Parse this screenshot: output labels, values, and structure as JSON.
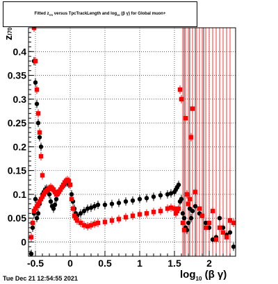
{
  "title": {
    "pre": "Fitted",
    "z_main": "z",
    "z_sub": "l70",
    "mid": "versus TpcTrackLength and log",
    "log_sub": "10",
    "post": "(β γ) for Global muon+"
  },
  "axes": {
    "ylabel_main": "z",
    "ylabel_sub": "l70",
    "xlabel_main": "log",
    "xlabel_sub": "10",
    "xlabel_post": "(β γ)"
  },
  "timestamp": "Tue Dec 21 12:54:55 2021",
  "chart_data": {
    "type": "scatter",
    "xlim": [
      -0.6,
      2.38
    ],
    "ylim": [
      -0.03,
      0.45
    ],
    "grid": true,
    "x_ticks": [
      -0.5,
      0,
      0.5,
      1,
      1.5,
      2
    ],
    "x_tick_labels": [
      "-0.5",
      "0",
      "0.5",
      "1",
      "1.5",
      "2"
    ],
    "y_ticks": [
      0,
      0.05,
      0.1,
      0.15,
      0.2,
      0.25,
      0.3,
      0.35,
      0.4
    ],
    "y_tick_labels": [
      "0",
      "0.05",
      "0.1",
      "0.15",
      "0.2",
      "0.25",
      "0.3",
      "0.35",
      "0.4"
    ],
    "series": [
      {
        "color": "#000000",
        "x": [
          -0.56,
          -0.54,
          -0.52,
          -0.5,
          -0.48,
          -0.46,
          -0.44,
          -0.42,
          -0.4,
          -0.38,
          -0.36,
          -0.34,
          -0.32,
          -0.3,
          -0.28,
          -0.26,
          -0.24,
          -0.22,
          -0.2,
          -0.18,
          -0.16,
          -0.14,
          -0.12,
          -0.1,
          -0.08,
          -0.06,
          -0.04,
          -0.02,
          0.0,
          0.02,
          0.04,
          0.06,
          0.08,
          0.1,
          0.15,
          0.2,
          0.25,
          0.3,
          0.35,
          0.4,
          0.5,
          0.6,
          0.7,
          0.8,
          0.9,
          1.0,
          1.1,
          1.2,
          1.3,
          1.4,
          1.45,
          1.5,
          1.52,
          1.54,
          1.56,
          1.58,
          1.6,
          1.62,
          1.64,
          1.66,
          1.68,
          1.7,
          1.72,
          1.74,
          1.76,
          1.8,
          1.86,
          1.9,
          1.95,
          2.0,
          2.05,
          2.1,
          2.15,
          2.2,
          2.25,
          2.3,
          2.35,
          -0.52,
          -0.5,
          -0.48,
          -0.46,
          -0.44,
          -0.42
        ],
        "y": [
          -0.025,
          0.03,
          0.06,
          0.09,
          0.05,
          0.06,
          0.08,
          0.09,
          0.1,
          0.105,
          0.11,
          0.112,
          0.108,
          0.1,
          0.085,
          0.075,
          0.07,
          0.078,
          0.09,
          0.1,
          0.105,
          0.11,
          0.115,
          0.12,
          0.122,
          0.125,
          0.125,
          0.122,
          0.12,
          0.1,
          0.085,
          0.07,
          0.06,
          0.055,
          0.06,
          0.065,
          0.07,
          0.072,
          0.075,
          0.078,
          0.078,
          0.08,
          0.082,
          0.085,
          0.087,
          0.09,
          0.092,
          0.095,
          0.098,
          0.1,
          0.102,
          0.105,
          0.11,
          0.115,
          0.12,
          0.085,
          0.09,
          0.06,
          0.05,
          0.03,
          0.025,
          0.04,
          0.07,
          0.05,
          0.065,
          0.075,
          0.06,
          0.055,
          0.04,
          0.03,
          0.005,
          0.01,
          0.05,
          0.03,
          0.015,
          0.02,
          -0.01,
          0.38,
          0.335,
          0.29,
          0.25,
          0.22,
          0.2
        ],
        "markers": "circle"
      },
      {
        "color": "#ff0000",
        "x": [
          -0.56,
          -0.54,
          -0.52,
          -0.5,
          -0.48,
          -0.46,
          -0.44,
          -0.42,
          -0.4,
          -0.38,
          -0.36,
          -0.34,
          -0.32,
          -0.3,
          -0.28,
          -0.26,
          -0.24,
          -0.22,
          -0.2,
          -0.18,
          -0.16,
          -0.14,
          -0.12,
          -0.1,
          -0.08,
          -0.06,
          -0.04,
          -0.02,
          0.0,
          0.02,
          0.04,
          0.06,
          0.08,
          0.1,
          0.15,
          0.2,
          0.25,
          0.3,
          0.35,
          0.4,
          0.5,
          0.6,
          0.7,
          0.8,
          0.9,
          1.0,
          1.1,
          1.2,
          1.3,
          1.4,
          1.45,
          1.5,
          1.52,
          1.54,
          1.56,
          1.58,
          1.6,
          1.62,
          1.64,
          1.66,
          1.68,
          1.7,
          1.72,
          1.74,
          1.76,
          1.8,
          1.86,
          1.9,
          1.95,
          2.0,
          2.05,
          2.1,
          2.15,
          2.2,
          2.25,
          2.3,
          2.35,
          -0.52,
          -0.5,
          -0.48,
          -0.46,
          -0.44,
          -0.42,
          -0.4
        ],
        "y": [
          0.01,
          0.04,
          0.065,
          0.07,
          0.075,
          0.08,
          0.085,
          0.09,
          0.095,
          0.1,
          0.105,
          0.108,
          0.11,
          0.112,
          0.115,
          0.112,
          0.11,
          0.105,
          0.1,
          0.102,
          0.106,
          0.11,
          0.115,
          0.12,
          0.125,
          0.128,
          0.13,
          0.128,
          0.12,
          0.09,
          0.07,
          0.055,
          0.05,
          0.045,
          0.04,
          0.035,
          0.033,
          0.035,
          0.038,
          0.04,
          0.042,
          0.045,
          0.048,
          0.052,
          0.055,
          0.058,
          0.06,
          0.063,
          0.065,
          0.07,
          0.072,
          0.07,
          0.06,
          0.065,
          0.07,
          0.32,
          0.3,
          0.04,
          0.025,
          0.26,
          0.1,
          0.08,
          0.09,
          0.22,
          0.28,
          0.105,
          0.07,
          0.055,
          0.03,
          0.04,
          0.065,
          0.005,
          0.03,
          0.02,
          0.01,
          0.045,
          0.04,
          0.45,
          0.38,
          0.32,
          0.27,
          0.23,
          0.18,
          0.14
        ],
        "markers": "square"
      }
    ]
  }
}
